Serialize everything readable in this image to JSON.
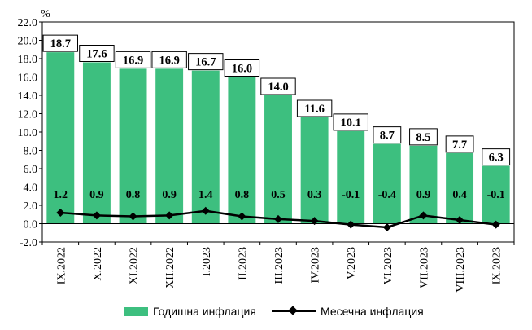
{
  "chart_data": {
    "type": "bar",
    "unit": "%",
    "categories": [
      "IX.2022",
      "X.2022",
      "XI.2022",
      "XII.2022",
      "I.2023",
      "II.2023",
      "III.2023",
      "IV.2023",
      "V.2023",
      "VI.2023",
      "VII.2023",
      "VIII.2023",
      "IX.2023"
    ],
    "series": [
      {
        "name": "Годишна инфлация",
        "type": "bar",
        "color": "#3dbf7f",
        "values": [
          18.7,
          17.6,
          16.9,
          16.9,
          16.7,
          16.0,
          14.0,
          11.6,
          10.1,
          8.7,
          8.5,
          7.7,
          6.3
        ],
        "labels": [
          "18.7",
          "17.6",
          "16.9",
          "16.9",
          "16.7",
          "16.0",
          "14.0",
          "11.6",
          "10.1",
          "8.7",
          "8.5",
          "7.7",
          "6.3"
        ]
      },
      {
        "name": "Месечна инфлация",
        "type": "line",
        "color": "#000000",
        "values": [
          1.2,
          0.9,
          0.8,
          0.9,
          1.4,
          0.8,
          0.5,
          0.3,
          -0.1,
          -0.4,
          0.9,
          0.4,
          -0.1
        ],
        "labels": [
          "1.2",
          "0.9",
          "0.8",
          "0.9",
          "1.4",
          "0.8",
          "0.5",
          "0.3",
          "-0.1",
          "-0.4",
          "0.9",
          "0.4",
          "-0.1"
        ]
      }
    ],
    "ylim": [
      -2.0,
      22.0
    ],
    "yticks": [
      "-2.0",
      "0.0",
      "2.0",
      "4.0",
      "6.0",
      "8.0",
      "10.0",
      "12.0",
      "14.0",
      "16.0",
      "18.0",
      "20.0",
      "22.0"
    ],
    "grid": false,
    "legend": "bottom"
  }
}
